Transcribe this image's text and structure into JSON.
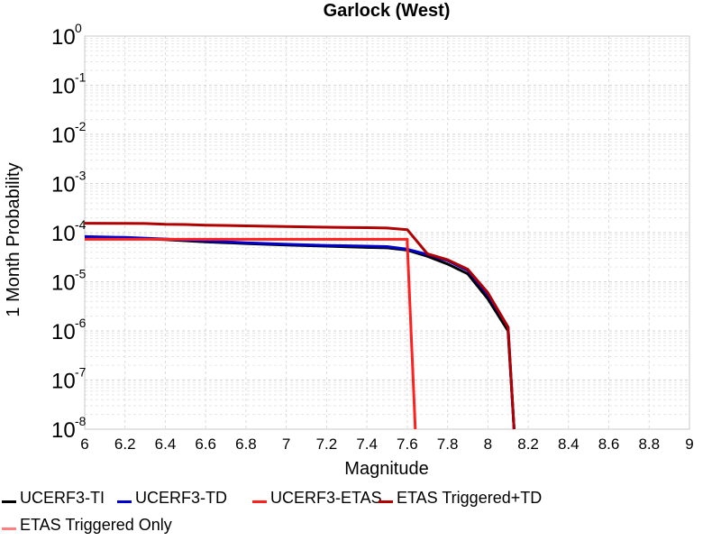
{
  "chart_data": {
    "type": "line",
    "title": "Garlock (West)",
    "xlabel": "Magnitude",
    "ylabel": "1 Month Probability",
    "xlim": [
      6,
      9
    ],
    "ylim": [
      1e-08,
      1
    ],
    "yscale": "log",
    "grid": true,
    "legend_position": "bottom",
    "x_ticks": [
      "6",
      "6.2",
      "6.4",
      "6.6",
      "6.8",
      "7",
      "7.2",
      "7.4",
      "7.6",
      "7.8",
      "8",
      "8.2",
      "8.4",
      "8.6",
      "8.8",
      "9"
    ],
    "y_ticks": [
      {
        "base": "10",
        "exp": "0",
        "value": 1
      },
      {
        "base": "10",
        "exp": "-1",
        "value": 0.1
      },
      {
        "base": "10",
        "exp": "-2",
        "value": 0.01
      },
      {
        "base": "10",
        "exp": "-3",
        "value": 0.001
      },
      {
        "base": "10",
        "exp": "-4",
        "value": 0.0001
      },
      {
        "base": "10",
        "exp": "-5",
        "value": 1e-05
      },
      {
        "base": "10",
        "exp": "-6",
        "value": 1e-06
      },
      {
        "base": "10",
        "exp": "-7",
        "value": 1e-07
      },
      {
        "base": "10",
        "exp": "-8",
        "value": 1e-08
      }
    ],
    "series": [
      {
        "name": "UCERF3-TI",
        "color": "#000000",
        "points": [
          [
            6.0,
            8e-05
          ],
          [
            6.2,
            7.8e-05
          ],
          [
            6.4,
            7.2e-05
          ],
          [
            6.6,
            6.5e-05
          ],
          [
            6.8,
            6e-05
          ],
          [
            7.0,
            5.6e-05
          ],
          [
            7.2,
            5.3e-05
          ],
          [
            7.4,
            5e-05
          ],
          [
            7.5,
            4.9e-05
          ],
          [
            7.6,
            4.4e-05
          ],
          [
            7.7,
            3.3e-05
          ],
          [
            7.8,
            2.3e-05
          ],
          [
            7.9,
            1.45e-05
          ],
          [
            8.0,
            4.5e-06
          ],
          [
            8.1,
            1e-06
          ],
          [
            8.13,
            1e-08
          ]
        ]
      },
      {
        "name": "UCERF3-TD",
        "color": "#0000cc",
        "points": [
          [
            6.0,
            8.3e-05
          ],
          [
            6.2,
            8e-05
          ],
          [
            6.4,
            7.4e-05
          ],
          [
            6.6,
            6.8e-05
          ],
          [
            6.8,
            6.2e-05
          ],
          [
            7.0,
            5.8e-05
          ],
          [
            7.2,
            5.5e-05
          ],
          [
            7.4,
            5.3e-05
          ],
          [
            7.5,
            5.2e-05
          ],
          [
            7.6,
            4.6e-05
          ],
          [
            7.7,
            3.6e-05
          ],
          [
            7.8,
            2.7e-05
          ],
          [
            7.9,
            1.7e-05
          ],
          [
            8.0,
            5.5e-06
          ],
          [
            8.1,
            1.2e-06
          ],
          [
            8.13,
            1e-08
          ]
        ]
      },
      {
        "name": "UCERF3-ETAS",
        "color": "#ff2020",
        "points": [
          [
            6.0,
            7.3e-05
          ],
          [
            6.2,
            7.3e-05
          ],
          [
            6.4,
            7.3e-05
          ],
          [
            6.6,
            7.3e-05
          ],
          [
            6.8,
            7.3e-05
          ],
          [
            7.0,
            7.3e-05
          ],
          [
            7.2,
            7.3e-05
          ],
          [
            7.4,
            7.3e-05
          ],
          [
            7.6,
            7.3e-05
          ],
          [
            7.6,
            6e-05
          ],
          [
            7.64,
            1e-08
          ]
        ]
      },
      {
        "name": "ETAS Triggered+TD",
        "color": "#b00000",
        "points": [
          [
            6.0,
            0.000155
          ],
          [
            6.2,
            0.000154
          ],
          [
            6.3,
            0.000153
          ],
          [
            6.4,
            0.000148
          ],
          [
            6.5,
            0.000146
          ],
          [
            6.6,
            0.000142
          ],
          [
            6.8,
            0.000137
          ],
          [
            7.0,
            0.000133
          ],
          [
            7.2,
            0.000129
          ],
          [
            7.4,
            0.000126
          ],
          [
            7.5,
            0.000124
          ],
          [
            7.6,
            0.000115
          ],
          [
            7.7,
            3.7e-05
          ],
          [
            7.8,
            2.8e-05
          ],
          [
            7.9,
            1.8e-05
          ],
          [
            8.0,
            6e-06
          ],
          [
            8.1,
            1.2e-06
          ],
          [
            8.13,
            1e-08
          ]
        ]
      },
      {
        "name": "ETAS Triggered Only",
        "color": "#ff8080",
        "points": []
      }
    ]
  }
}
